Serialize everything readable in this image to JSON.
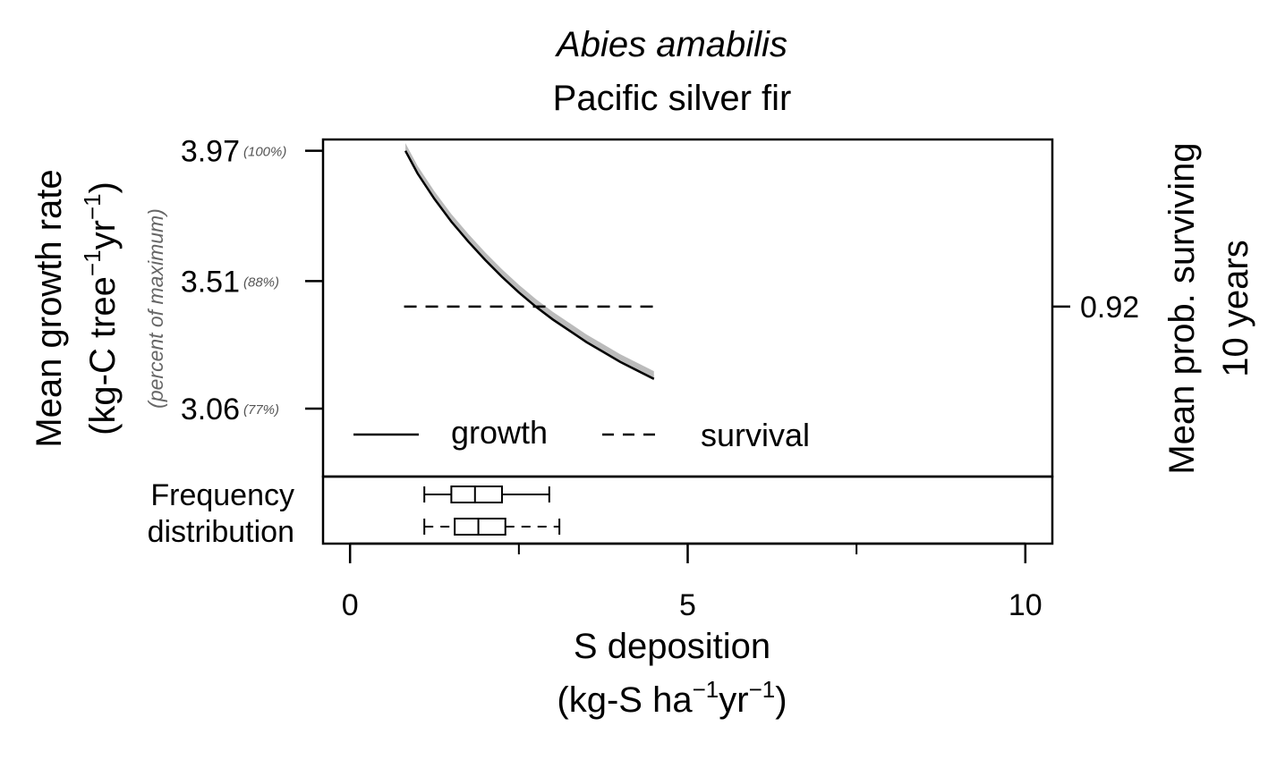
{
  "chart_data": {
    "type": "line",
    "title": "Abies amabilis",
    "subtitle": "Pacific silver fir",
    "xlabel_line1": "S deposition",
    "xlabel_line2_parts": [
      "(kg-S ha",
      "−1",
      "yr",
      "−1",
      ")"
    ],
    "ylabel_line1": "Mean growth rate",
    "ylabel_line2_parts": [
      "(kg-C tree",
      "−1",
      "yr",
      "−1",
      ")"
    ],
    "ylabel_secondary": "(percent of maximum)",
    "y2label_line1": "Mean prob. surviving",
    "y2label_line2": "10 years",
    "xlim": [
      -0.4,
      10.4
    ],
    "ylim": [
      2.82,
      4.01
    ],
    "x_ticks": [
      0,
      5,
      10
    ],
    "x_tick_labels": [
      "0",
      "5",
      "10"
    ],
    "x_minor_ticks": [
      2.5,
      7.5
    ],
    "y_ticks": [
      3.97,
      3.51,
      3.06
    ],
    "y_tick_labels": [
      "3.97",
      "3.51",
      "3.06"
    ],
    "y_pct_labels": [
      "(100%)",
      "(88%)",
      "(77%)"
    ],
    "y2_ticks": [
      3.42
    ],
    "y2_tick_labels": [
      "0.92"
    ],
    "series": [
      {
        "name": "growth",
        "style": "solid",
        "x": [
          0.82,
          1.0,
          1.25,
          1.5,
          1.75,
          2.0,
          2.25,
          2.5,
          2.75,
          3.0,
          3.25,
          3.5,
          3.75,
          4.0,
          4.25,
          4.5
        ],
        "y": [
          3.97,
          3.89,
          3.8,
          3.72,
          3.65,
          3.585,
          3.525,
          3.47,
          3.42,
          3.375,
          3.335,
          3.295,
          3.26,
          3.225,
          3.195,
          3.165
        ]
      },
      {
        "name": "survival",
        "style": "dashed",
        "x": [
          0.8,
          4.5
        ],
        "y": [
          3.42,
          3.42
        ]
      }
    ],
    "growth_band_offset": 0.018,
    "legend": {
      "position": "bottom",
      "entries": [
        "growth",
        "survival"
      ]
    },
    "frequency_label": [
      "Frequency",
      "distribution"
    ],
    "boxplots": [
      {
        "name": "growth",
        "style": "solid",
        "min": 1.1,
        "q1": 1.5,
        "median": 1.85,
        "q3": 2.25,
        "max": 2.95
      },
      {
        "name": "survival",
        "style": "dashed",
        "min": 1.1,
        "q1": 1.55,
        "median": 1.9,
        "q3": 2.3,
        "max": 3.1
      }
    ],
    "colors": {
      "line": "#000000",
      "band": "#bbbbbb",
      "pct_text": "#555555"
    }
  }
}
